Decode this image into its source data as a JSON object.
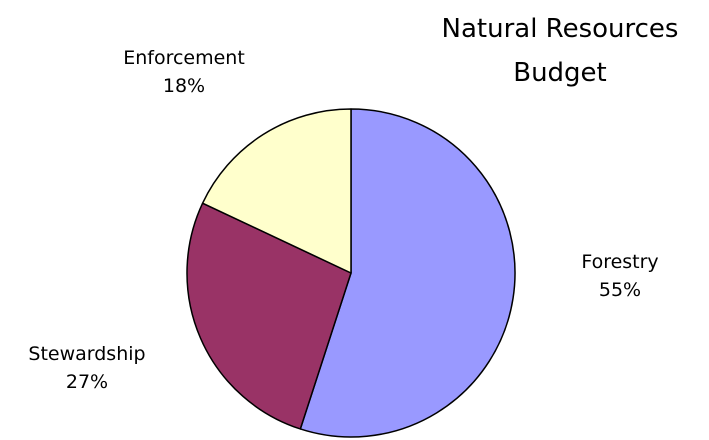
{
  "chart_data": {
    "type": "pie",
    "title_lines": [
      "Natural Resources",
      "Budget"
    ],
    "slices": [
      {
        "label": "Forestry",
        "value": 55,
        "pct_label": "55%",
        "color": "#9999ff"
      },
      {
        "label": "Stewardship",
        "value": 27,
        "pct_label": "27%",
        "color": "#993366"
      },
      {
        "label": "Enforcement",
        "value": 18,
        "pct_label": "18%",
        "color": "#ffffcc"
      }
    ],
    "slice_stroke": "#000000",
    "start": "12 o'clock",
    "direction": "clockwise",
    "legend": "none",
    "data_labels": "outside"
  }
}
